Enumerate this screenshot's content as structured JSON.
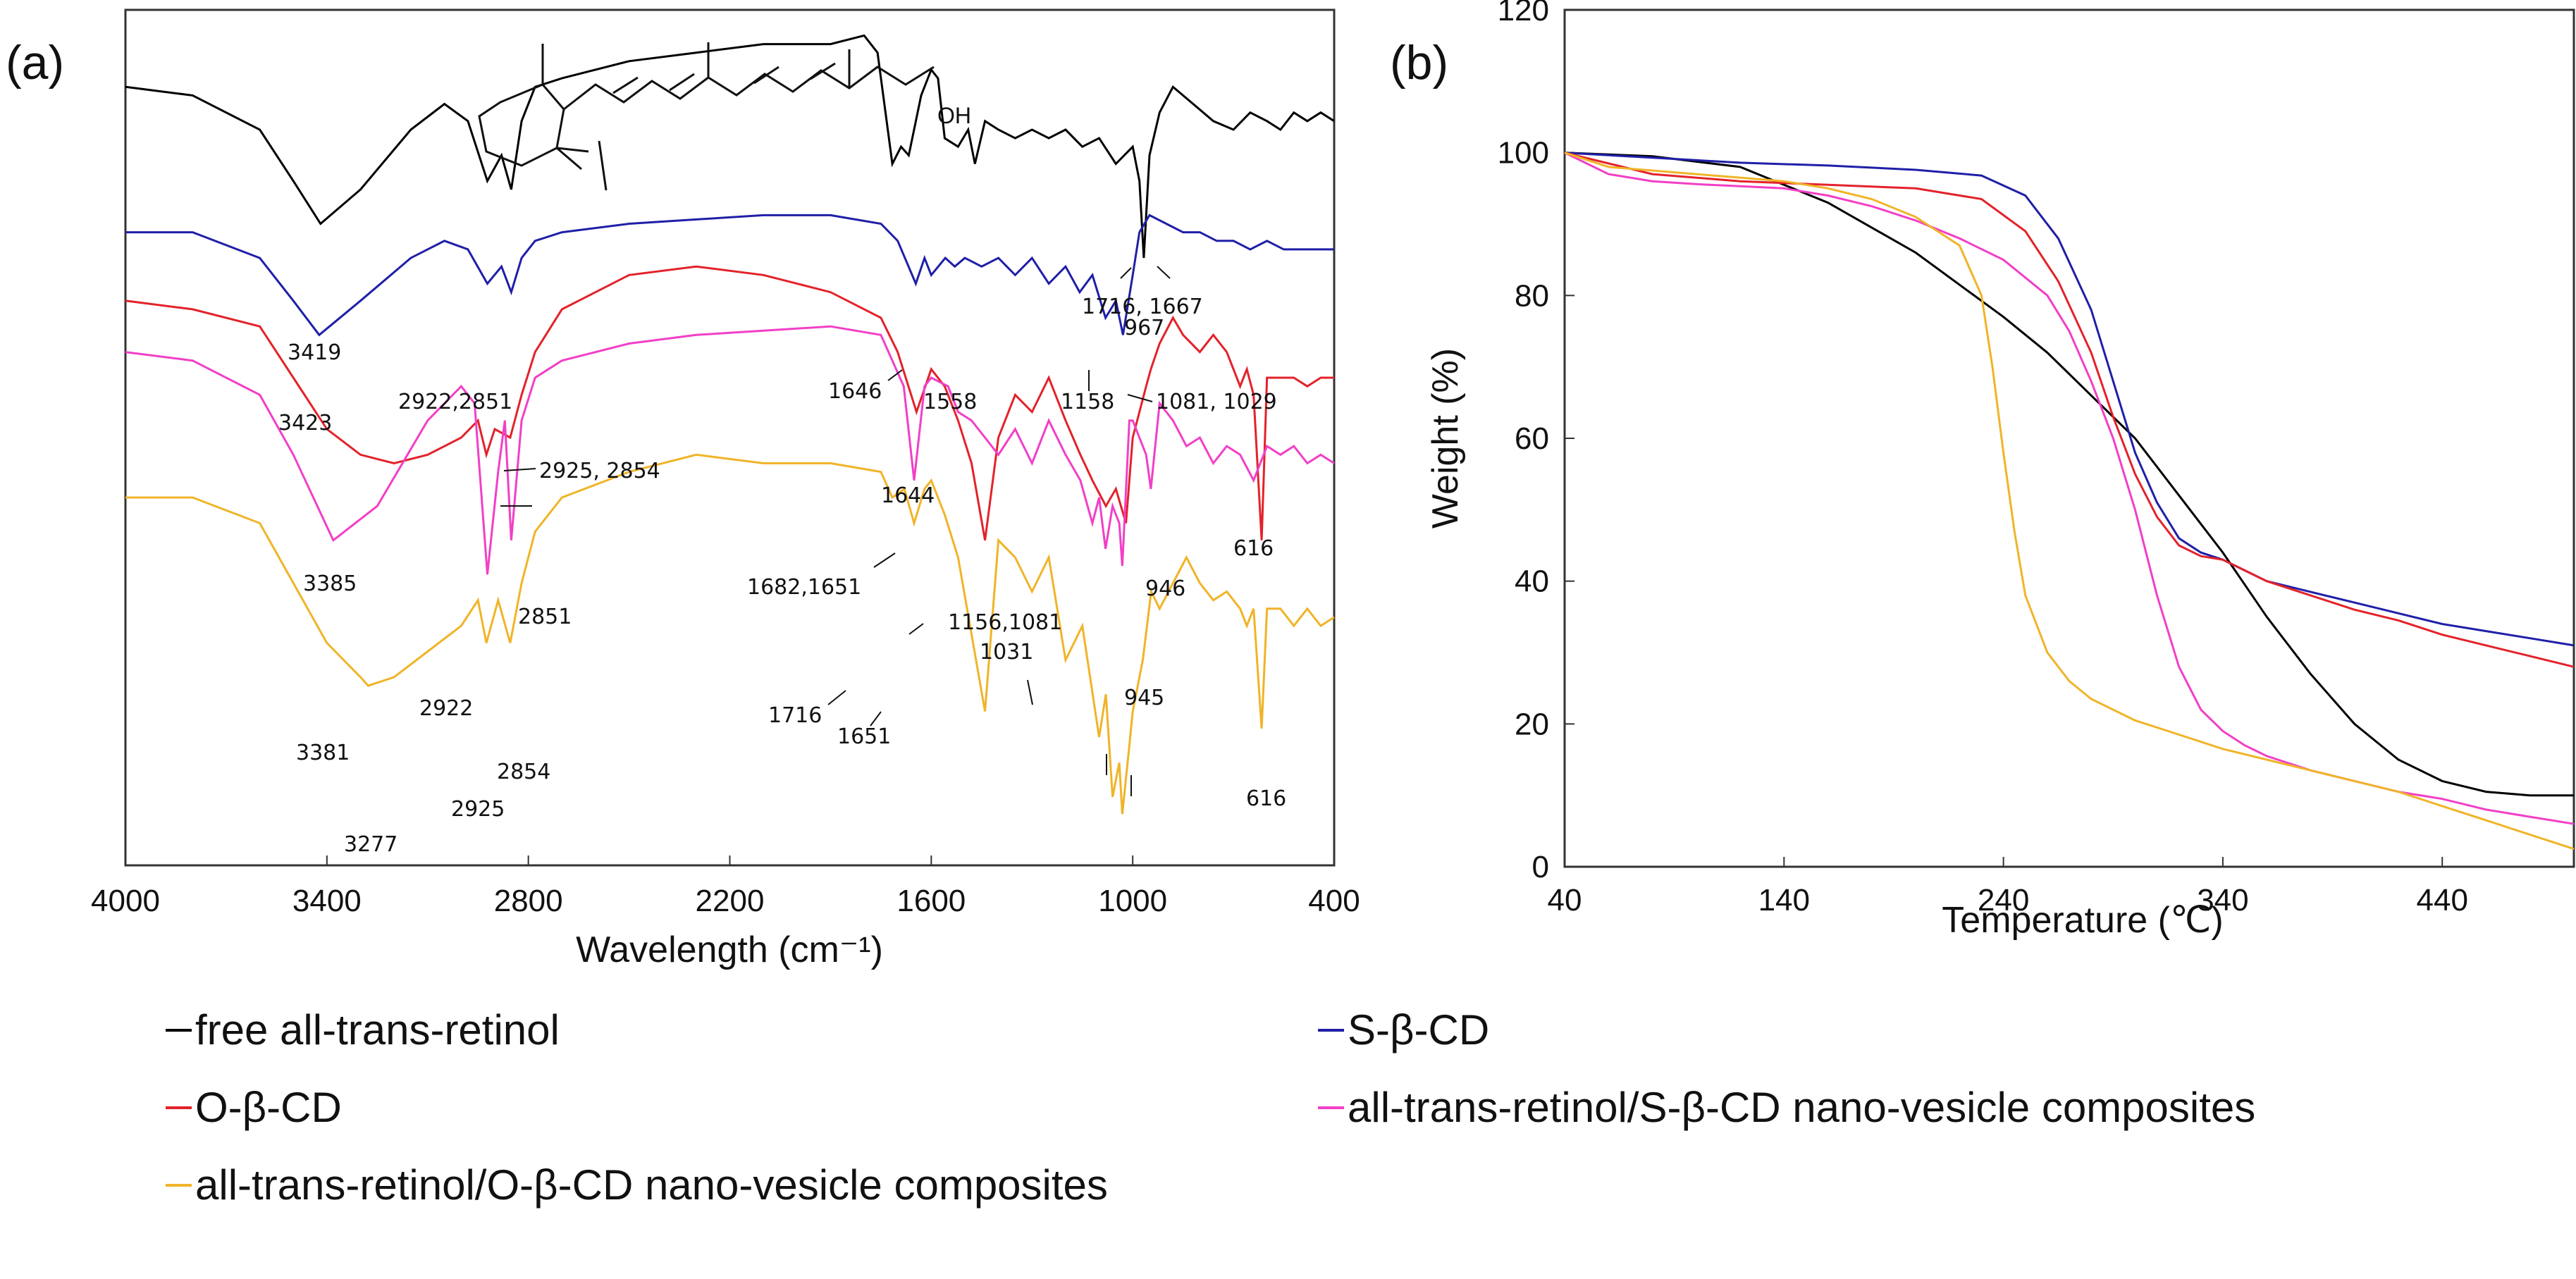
{
  "figure": {
    "legend": [
      {
        "label": "free all-trans-retinol",
        "color": "#000000"
      },
      {
        "label": "S-β-CD",
        "color": "#1f1fa8"
      },
      {
        "label": "O-β-CD",
        "color": "#e3222a"
      },
      {
        "label": "all-trans-retinol/S-β-CD nano-vesicle composites",
        "color": "#f23fc7"
      },
      {
        "label": "all-trans-retinol/O-β-CD nano-vesicle composites",
        "color": "#f0b428"
      }
    ]
  },
  "chart_data": [
    {
      "panel": "(a)",
      "type": "line",
      "title": "",
      "xlabel": "Wavelength (cm⁻¹)",
      "ylabel": "",
      "xlim": [
        4000,
        400
      ],
      "x_reversed": true,
      "xticks": [
        4000,
        3400,
        2800,
        2200,
        1600,
        1000,
        400
      ],
      "ylim": [
        0,
        100
      ],
      "yticks_shown": false,
      "grid": false,
      "inset": {
        "structure": "all-trans-retinol",
        "label": "OH"
      },
      "series": [
        {
          "name": "free all-trans-retinol",
          "color": "#000000",
          "x": [
            4000,
            3800,
            3600,
            3500,
            3419,
            3300,
            3150,
            3050,
            2980,
            2922,
            2880,
            2851,
            2820,
            2780,
            2700,
            2500,
            2300,
            2100,
            1900,
            1800,
            1760,
            1716,
            1690,
            1667,
            1630,
            1600,
            1580,
            1560,
            1520,
            1490,
            1470,
            1440,
            1400,
            1350,
            1300,
            1250,
            1200,
            1150,
            1100,
            1050,
            1000,
            980,
            967,
            950,
            920,
            880,
            820,
            760,
            700,
            650,
            600,
            560,
            520,
            480,
            440,
            400
          ],
          "y": [
            91,
            90,
            86,
            80,
            75,
            79,
            86,
            89,
            87,
            80,
            83,
            79,
            87,
            91,
            92,
            94,
            95,
            96,
            96,
            97,
            95,
            82,
            84,
            83,
            90,
            93,
            92,
            85,
            84,
            86,
            82,
            87,
            86,
            85,
            86,
            85,
            86,
            84,
            85,
            82,
            84,
            80,
            71,
            83,
            88,
            91,
            89,
            87,
            86,
            88,
            87,
            86,
            88,
            87,
            88,
            87
          ]
        },
        {
          "name": "S-β-CD",
          "color": "#1f1fa8",
          "x": [
            4000,
            3800,
            3600,
            3500,
            3423,
            3300,
            3150,
            3050,
            2980,
            2922,
            2880,
            2851,
            2820,
            2780,
            2700,
            2500,
            2300,
            2100,
            1900,
            1750,
            1700,
            1646,
            1620,
            1600,
            1558,
            1530,
            1500,
            1450,
            1400,
            1350,
            1300,
            1250,
            1200,
            1158,
            1120,
            1081,
            1050,
            1029,
            1000,
            980,
            950,
            900,
            850,
            800,
            750,
            700,
            650,
            600,
            550,
            500,
            450,
            400
          ],
          "y": [
            74,
            74,
            71,
            66,
            62,
            66,
            71,
            73,
            72,
            68,
            70,
            67,
            71,
            73,
            74,
            75,
            75.5,
            76,
            76,
            75,
            73,
            68,
            71,
            69,
            71,
            70,
            71,
            70,
            71,
            69,
            71,
            68,
            70,
            67,
            69,
            64,
            66,
            62,
            69,
            74,
            76,
            75,
            74,
            74,
            73,
            73,
            72,
            73,
            72,
            72,
            72,
            72
          ]
        },
        {
          "name": "O-β-CD",
          "color": "#e3222a",
          "x": [
            4000,
            3800,
            3600,
            3500,
            3400,
            3300,
            3200,
            3100,
            3000,
            2950,
            2925,
            2900,
            2854,
            2820,
            2780,
            2700,
            2500,
            2300,
            2100,
            1900,
            1750,
            1700,
            1644,
            1600,
            1560,
            1520,
            1480,
            1440,
            1400,
            1350,
            1300,
            1250,
            1200,
            1156,
            1120,
            1080,
            1050,
            1020,
            1000,
            960,
            946,
            920,
            880,
            850,
            800,
            760,
            720,
            680,
            660,
            640,
            616,
            600,
            560,
            520,
            480,
            440,
            400
          ],
          "y": [
            66,
            65,
            63,
            57,
            51,
            48,
            47,
            48,
            50,
            52,
            48,
            51,
            50,
            55,
            60,
            65,
            69,
            70,
            69,
            67,
            64,
            60,
            53,
            58,
            56,
            52,
            47,
            38,
            50,
            55,
            53,
            57,
            52,
            48,
            45,
            42,
            44,
            40,
            50,
            56,
            58,
            61,
            64,
            62,
            60,
            62,
            60,
            56,
            58,
            55,
            38,
            57,
            57,
            57,
            56,
            57,
            57
          ]
        },
        {
          "name": "all-trans-retinol/S-β-CD nano-vesicle composites",
          "color": "#f23fc7",
          "x": [
            4000,
            3800,
            3600,
            3500,
            3381,
            3250,
            3100,
            3000,
            2960,
            2922,
            2890,
            2870,
            2851,
            2820,
            2780,
            2700,
            2500,
            2300,
            2100,
            1900,
            1750,
            1682,
            1651,
            1620,
            1600,
            1550,
            1520,
            1480,
            1440,
            1400,
            1350,
            1300,
            1250,
            1200,
            1156,
            1120,
            1100,
            1081,
            1060,
            1040,
            1031,
            1010,
            1000,
            960,
            946,
            920,
            880,
            840,
            800,
            760,
            720,
            680,
            640,
            600,
            560,
            520,
            480,
            440,
            400
          ],
          "y": [
            60,
            59,
            55,
            48,
            38,
            42,
            52,
            56,
            54,
            34,
            46,
            52,
            38,
            52,
            57,
            59,
            61,
            62,
            62.5,
            63,
            62,
            56,
            45,
            56,
            57,
            56,
            53,
            52,
            50,
            48,
            51,
            47,
            52,
            48,
            45,
            40,
            43,
            37,
            42,
            40,
            35,
            52,
            52,
            48,
            44,
            54,
            52,
            49,
            50,
            47,
            49,
            48,
            45,
            49,
            48,
            49,
            47,
            48,
            47
          ]
        },
        {
          "name": "all-trans-retinol/O-β-CD nano-vesicle composites",
          "color": "#f0b428",
          "x": [
            4000,
            3800,
            3600,
            3500,
            3400,
            3300,
            3277,
            3200,
            3100,
            3000,
            2950,
            2925,
            2890,
            2854,
            2820,
            2780,
            2700,
            2500,
            2300,
            2100,
            1900,
            1750,
            1716,
            1680,
            1651,
            1620,
            1600,
            1560,
            1520,
            1480,
            1440,
            1400,
            1350,
            1300,
            1250,
            1200,
            1150,
            1100,
            1080,
            1060,
            1040,
            1031,
            1010,
            1000,
            970,
            945,
            920,
            880,
            840,
            800,
            760,
            720,
            680,
            660,
            640,
            616,
            600,
            560,
            520,
            480,
            440,
            400
          ],
          "y": [
            43,
            43,
            40,
            33,
            26,
            22,
            21,
            22,
            25,
            28,
            31,
            26,
            31,
            26,
            33,
            39,
            43,
            46,
            48,
            47,
            47,
            46,
            43,
            44,
            40,
            44,
            45,
            41,
            36,
            27,
            18,
            38,
            36,
            32,
            36,
            24,
            28,
            15,
            20,
            8,
            12,
            6,
            14,
            18,
            24,
            32,
            30,
            33,
            36,
            33,
            31,
            32,
            30,
            28,
            30,
            16,
            30,
            30,
            28,
            30,
            28,
            29
          ]
        }
      ],
      "annotations": [
        "3419",
        "2922,2851",
        "1716, 1667",
        "967",
        "3423",
        "1646",
        "1558",
        "1158",
        "1081, 1029",
        "2925, 2854",
        "1644",
        "616",
        "3385",
        "1682,1651",
        "946",
        "2851",
        "1156,1081",
        "1031",
        "2922",
        "1716",
        "1651",
        "945",
        "3381",
        "2854",
        "2925",
        "616",
        "3277"
      ]
    },
    {
      "panel": "(b)",
      "type": "line",
      "title": "",
      "xlabel": "Temperature (℃)",
      "ylabel": "Weight (%)",
      "xlim": [
        40,
        500
      ],
      "ylim": [
        0,
        120
      ],
      "xticks": [
        40,
        140,
        240,
        340,
        440
      ],
      "yticks": [
        0,
        20,
        40,
        60,
        80,
        100,
        120
      ],
      "grid": false,
      "series": [
        {
          "name": "free all-trans-retinol",
          "color": "#000000",
          "x": [
            40,
            80,
            120,
            160,
            200,
            240,
            260,
            280,
            300,
            320,
            340,
            360,
            380,
            400,
            420,
            440,
            460,
            480,
            500
          ],
          "y": [
            100,
            99.5,
            98,
            93,
            86,
            77,
            72,
            66,
            60,
            52,
            44,
            35,
            27,
            20,
            15,
            12,
            10.5,
            10,
            10
          ]
        },
        {
          "name": "S-β-CD",
          "color": "#1f1fa8",
          "x": [
            40,
            80,
            120,
            160,
            200,
            230,
            250,
            265,
            280,
            290,
            300,
            310,
            320,
            330,
            340,
            360,
            380,
            400,
            420,
            440,
            460,
            480,
            500
          ],
          "y": [
            100,
            99.3,
            98.6,
            98.2,
            97.6,
            96.8,
            94,
            88,
            78,
            68,
            58,
            51,
            46,
            44,
            43,
            40,
            38.5,
            37,
            35.5,
            34,
            33,
            32,
            31
          ]
        },
        {
          "name": "O-β-CD",
          "color": "#e3222a",
          "x": [
            40,
            80,
            120,
            160,
            200,
            230,
            250,
            265,
            280,
            290,
            300,
            310,
            320,
            330,
            340,
            360,
            380,
            400,
            420,
            440,
            460,
            480,
            500
          ],
          "y": [
            100,
            97,
            96,
            95.5,
            95,
            93.5,
            89,
            82,
            72,
            63,
            55,
            49,
            45,
            43.5,
            43,
            40,
            38,
            36,
            34.5,
            32.5,
            31,
            29.5,
            28
          ]
        },
        {
          "name": "all-trans-retinol/S-β-CD nano-vesicle composites",
          "color": "#f23fc7",
          "x": [
            40,
            60,
            80,
            100,
            120,
            140,
            160,
            180,
            200,
            220,
            240,
            260,
            270,
            280,
            290,
            300,
            310,
            320,
            330,
            340,
            350,
            360,
            380,
            400,
            420,
            440,
            460,
            480,
            500
          ],
          "y": [
            100,
            97,
            96,
            95.6,
            95.3,
            95,
            94,
            92.5,
            90.5,
            88,
            85,
            80,
            75,
            68,
            60,
            50,
            38,
            28,
            22,
            19,
            17,
            15.5,
            13.5,
            12,
            10.5,
            9.5,
            8,
            7,
            6
          ]
        },
        {
          "name": "all-trans-retinol/O-β-CD nano-vesicle composites",
          "color": "#f0b428",
          "x": [
            40,
            60,
            80,
            100,
            120,
            140,
            160,
            180,
            200,
            220,
            230,
            235,
            240,
            245,
            250,
            260,
            270,
            280,
            300,
            320,
            340,
            360,
            380,
            400,
            420,
            440,
            460,
            480,
            500
          ],
          "y": [
            100,
            98,
            97.5,
            97,
            96.5,
            96,
            95,
            93.5,
            91,
            87,
            80,
            70,
            58,
            47,
            38,
            30,
            26,
            23.5,
            20.5,
            18.5,
            16.5,
            15,
            13.5,
            12,
            10.5,
            8.5,
            6.5,
            4.5,
            2.5
          ]
        }
      ]
    }
  ]
}
